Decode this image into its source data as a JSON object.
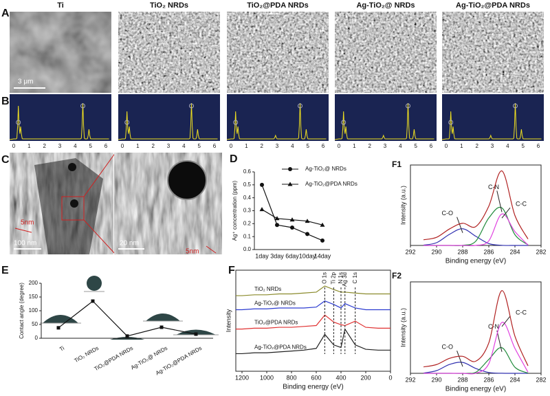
{
  "panel_labels": [
    "A",
    "B",
    "C",
    "D",
    "E",
    "F",
    "F1",
    "F2"
  ],
  "sem": {
    "titles": [
      "Ti",
      "TiO₂ NRDs",
      "TiO₂@PDA NRDs",
      "Ag-TiO₂@ NRDs",
      "Ag-TiO₂@PDA NRDs"
    ],
    "scale_bar": "3 μm"
  },
  "eds": {
    "ticks": [
      0,
      1,
      2,
      3,
      4,
      5,
      6
    ]
  },
  "tem": {
    "labels": [
      "5nm",
      "100 nm",
      "20 nm",
      "5nm"
    ]
  },
  "chart_data": [
    {
      "type": "line",
      "ylabel": "Ag⁺ concentration (ppm)",
      "categories": [
        "1day",
        "3day",
        "6day",
        "10day",
        "14day"
      ],
      "series": [
        {
          "name": "Ag-TiO₂@ NRDs",
          "color": "#111111",
          "marker": "circle",
          "values": [
            0.5,
            0.19,
            0.17,
            0.12,
            0.07
          ]
        },
        {
          "name": "Ag-TiO₂@PDA NRDs",
          "color": "#111111",
          "marker": "triangle",
          "values": [
            0.31,
            0.24,
            0.23,
            0.22,
            0.19
          ]
        }
      ],
      "ylim": [
        0,
        0.6
      ],
      "yticks": [
        {
          "value": 0,
          "label": "0.0"
        },
        0.1,
        0.2,
        0.3,
        0.4,
        0.5,
        0.6
      ],
      "legend": "top-right"
    },
    {
      "type": "xps",
      "xlabel": "Binding energy (eV)",
      "ylabel": "Intensity (a.u.)",
      "x": [
        291,
        290,
        289,
        288,
        287,
        286,
        285,
        284,
        283
      ],
      "xlim": [
        292,
        282
      ],
      "xticks": [
        292,
        290,
        288,
        286,
        284,
        282
      ],
      "ylim": [
        0,
        120
      ],
      "series": [
        {
          "name": "C-O",
          "color": "#3030b0",
          "values": [
            0.4,
            4.1,
            16.7,
            24.9,
            13.7,
            2.8,
            0.2,
            0,
            0
          ]
        },
        {
          "name": "C-N",
          "color": "#1f8a3a",
          "values": [
            0,
            0,
            0,
            0.2,
            6.3,
            41,
            56,
            16,
            1
          ]
        },
        {
          "name": "C-C",
          "color": "#e040e0",
          "values": [
            0,
            0,
            0,
            0,
            0.1,
            6.8,
            47,
            20.6,
            0.6
          ]
        }
      ],
      "fit": {
        "color": "#b02020",
        "values": [
          8.4,
          12.1,
          24.7,
          33.1,
          28.1,
          58.6,
          111.2,
          44.6,
          9.6
        ]
      }
    },
    {
      "type": "line",
      "ylabel": "Contact angle (degree)",
      "categories": [
        "Ti",
        "TiO₂ NRDs",
        "TiO₂@PDA NRDs",
        "Ag-TiO₂@ NRDs",
        "Ag-TiO₂@PDA NRDs"
      ],
      "values": [
        38,
        135,
        8,
        40,
        15
      ],
      "color": "#111111",
      "marker": "square",
      "ylim": [
        0,
        200
      ],
      "yticks": [
        0,
        50,
        100,
        150,
        200
      ]
    },
    {
      "type": "survey",
      "xlabel": "Binding energy (eV)",
      "ylabel": "Intensity",
      "x": [
        1250,
        1200,
        1100,
        1000,
        900,
        800,
        700,
        600,
        531,
        459,
        400,
        368,
        285,
        200,
        100,
        0
      ],
      "xlim": [
        1250,
        0
      ],
      "xticks": [
        1200,
        1000,
        800,
        600,
        400,
        200,
        0
      ],
      "ylim": [
        0,
        115
      ],
      "series": [
        {
          "name": "TiO₂ NRDs",
          "color": "#8a8a2a",
          "values": [
            86,
            86,
            87,
            87,
            88,
            88,
            89,
            90,
            97,
            93,
            90,
            90,
            89,
            88,
            88,
            88
          ]
        },
        {
          "name": "Ag-TiO₂@ NRDs",
          "color": "#2a3ad0",
          "values": [
            70,
            70,
            71,
            71,
            72,
            72,
            72,
            73,
            80,
            76,
            72,
            77,
            72,
            70,
            70,
            70
          ]
        },
        {
          "name": "TiO₂@PDA NRDs",
          "color": "#e03030",
          "values": [
            48,
            48,
            49,
            49,
            50,
            50,
            51,
            52,
            64,
            56,
            53,
            52,
            57,
            50,
            49,
            49
          ]
        },
        {
          "name": "Ag-TiO₂@PDA NRDs",
          "color": "#202020",
          "values": [
            20,
            20,
            21,
            21,
            22,
            23,
            24,
            26,
            42,
            30,
            27,
            48,
            30,
            25,
            24,
            24
          ]
        }
      ],
      "peaks": [
        {
          "label": "O 1s",
          "x": 531
        },
        {
          "label": "Ti 2p",
          "x": 459
        },
        {
          "label": "N 1s",
          "x": 400
        },
        {
          "label": "Ag 3d",
          "x": 368
        },
        {
          "label": "C 1s",
          "x": 285
        }
      ]
    },
    {
      "type": "xps",
      "xlabel": "Binding energy (eV)",
      "ylabel": "Intensity (a.u.)",
      "x": [
        291,
        290,
        289,
        288,
        287,
        286,
        285,
        284,
        283
      ],
      "xlim": [
        292,
        282
      ],
      "xticks": [
        292,
        290,
        288,
        286,
        284,
        282
      ],
      "ylim": [
        0,
        120
      ],
      "series": [
        {
          "name": "C-O",
          "color": "#3030b0",
          "values": [
            0.4,
            3.5,
            11.7,
            14.3,
            6.4,
            1.1,
            0.1,
            0,
            0
          ]
        },
        {
          "name": "C-N",
          "color": "#1f8a3a",
          "values": [
            0,
            0,
            0,
            0,
            1.3,
            18.2,
            33.6,
            8,
            0.3
          ]
        },
        {
          "name": "C-C",
          "color": "#e040e0",
          "values": [
            0,
            0,
            0,
            0,
            0.2,
            12.7,
            66.8,
            32.7,
            1.5
          ]
        }
      ],
      "fit": {
        "color": "#b02020",
        "values": [
          8.4,
          11.5,
          19.7,
          22.3,
          15.9,
          40,
          108.5,
          48.7,
          9.8
        ]
      }
    }
  ]
}
